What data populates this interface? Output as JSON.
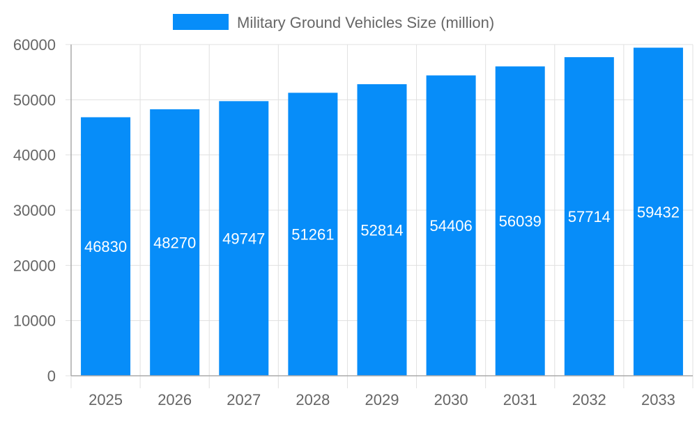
{
  "chart_data": {
    "type": "bar",
    "categories": [
      "2025",
      "2026",
      "2027",
      "2028",
      "2029",
      "2030",
      "2031",
      "2032",
      "2033"
    ],
    "series": [
      {
        "name": "Military Ground Vehicles Size (million)",
        "values": [
          46830,
          48270,
          49747,
          51261,
          52814,
          54406,
          56039,
          57714,
          59432
        ]
      }
    ],
    "ylim": [
      0,
      60000
    ],
    "yticks": [
      "0",
      "10000",
      "20000",
      "30000",
      "40000",
      "50000",
      "60000"
    ],
    "grid": true,
    "legend": "top",
    "data_labels": true,
    "colors": {
      "bar": "#078DF9",
      "text": "#666666",
      "grid": "#e0e0e0",
      "label": "#ffffff"
    }
  }
}
